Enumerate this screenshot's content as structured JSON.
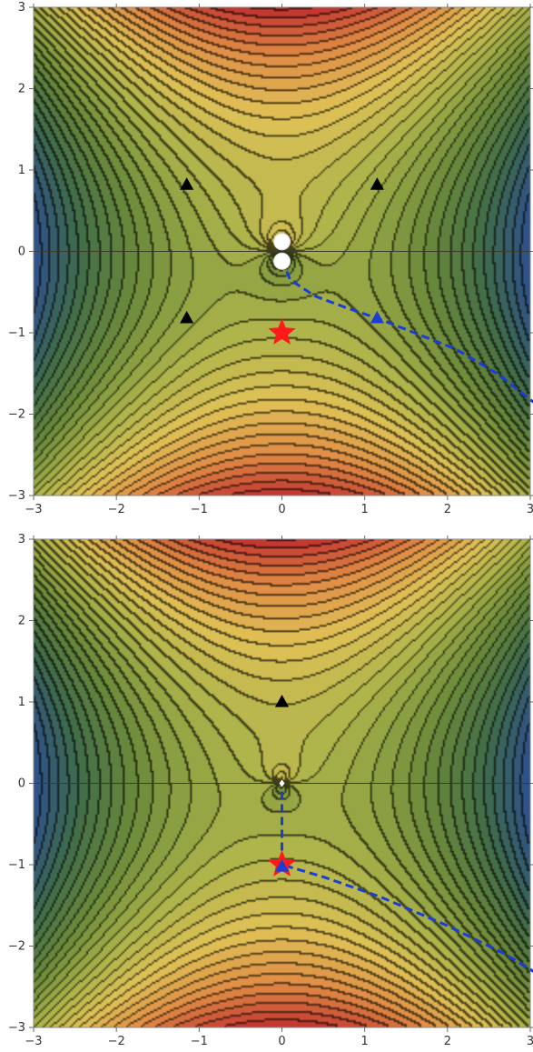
{
  "chart_data": [
    {
      "type": "contour",
      "panel": "top",
      "xlim": [
        -3,
        3
      ],
      "ylim": [
        -3,
        3
      ],
      "x_ticks": [
        -3,
        -2,
        -1,
        0,
        1,
        2,
        3
      ],
      "y_ticks": [
        -3,
        -2,
        -1,
        0,
        1,
        2,
        3
      ],
      "x_tick_labels": [
        "−3",
        "−2",
        "−1",
        "0",
        "1",
        "2",
        "3"
      ],
      "y_tick_labels": [
        "−3",
        "−2",
        "−1",
        "0",
        "1",
        "2",
        "3"
      ],
      "colormap": [
        "#2d4f8f",
        "#3f6b4a",
        "#6b8a3a",
        "#aab24a",
        "#e0c257",
        "#e08a45",
        "#c0302f"
      ],
      "grid": false,
      "markers": {
        "saddles": [
          {
            "x": -1.15,
            "y": 0.82
          },
          {
            "x": 1.15,
            "y": 0.82
          },
          {
            "x": -1.15,
            "y": -0.82
          }
        ],
        "highlighted_saddle": {
          "x": 1.15,
          "y": -0.82,
          "color": "#1a3ed6"
        },
        "star": {
          "x": 0.0,
          "y": -1.0,
          "color": "#ff1a1a"
        },
        "white_circles": [
          {
            "x": 0.0,
            "y": 0.12
          },
          {
            "x": 0.0,
            "y": -0.12
          }
        ]
      },
      "path": {
        "color": "#1a3ed6",
        "style": "dashed",
        "points": [
          [
            0.0,
            -0.1
          ],
          [
            0.1,
            -0.35
          ],
          [
            0.4,
            -0.55
          ],
          [
            0.8,
            -0.7
          ],
          [
            1.15,
            -0.82
          ],
          [
            1.6,
            -1.0
          ],
          [
            2.1,
            -1.2
          ],
          [
            2.6,
            -1.5
          ],
          [
            3.1,
            -1.9
          ]
        ]
      }
    },
    {
      "type": "contour",
      "panel": "bottom",
      "xlim": [
        -3,
        3
      ],
      "ylim": [
        -3,
        3
      ],
      "x_ticks": [
        -3,
        -2,
        -1,
        0,
        1,
        2,
        3
      ],
      "y_ticks": [
        -3,
        -2,
        -1,
        0,
        1,
        2,
        3
      ],
      "x_tick_labels": [
        "−3",
        "−2",
        "−1",
        "0",
        "1",
        "2",
        "3"
      ],
      "y_tick_labels": [
        "−3",
        "−2",
        "−1",
        "0",
        "1",
        "2",
        "3"
      ],
      "colormap": [
        "#2d4f8f",
        "#3f6b4a",
        "#6b8a3a",
        "#aab24a",
        "#e0c257",
        "#e08a45",
        "#c0302f"
      ],
      "grid": false,
      "markers": {
        "saddles": [
          {
            "x": 0.0,
            "y": 1.0
          }
        ],
        "highlighted_saddle": {
          "x": 0.0,
          "y": -1.0,
          "color": "#1a3ed6"
        },
        "star": {
          "x": 0.0,
          "y": -1.0,
          "color": "#ff1a1a"
        },
        "white_diamond": {
          "x": 0.0,
          "y": 0.0
        }
      },
      "path": {
        "color": "#1a3ed6",
        "style": "dashed",
        "points": [
          [
            0.0,
            -0.1
          ],
          [
            0.0,
            -0.5
          ],
          [
            0.0,
            -1.0
          ],
          [
            0.5,
            -1.15
          ],
          [
            1.2,
            -1.4
          ],
          [
            2.0,
            -1.75
          ],
          [
            2.7,
            -2.1
          ],
          [
            3.1,
            -2.35
          ]
        ]
      }
    }
  ]
}
